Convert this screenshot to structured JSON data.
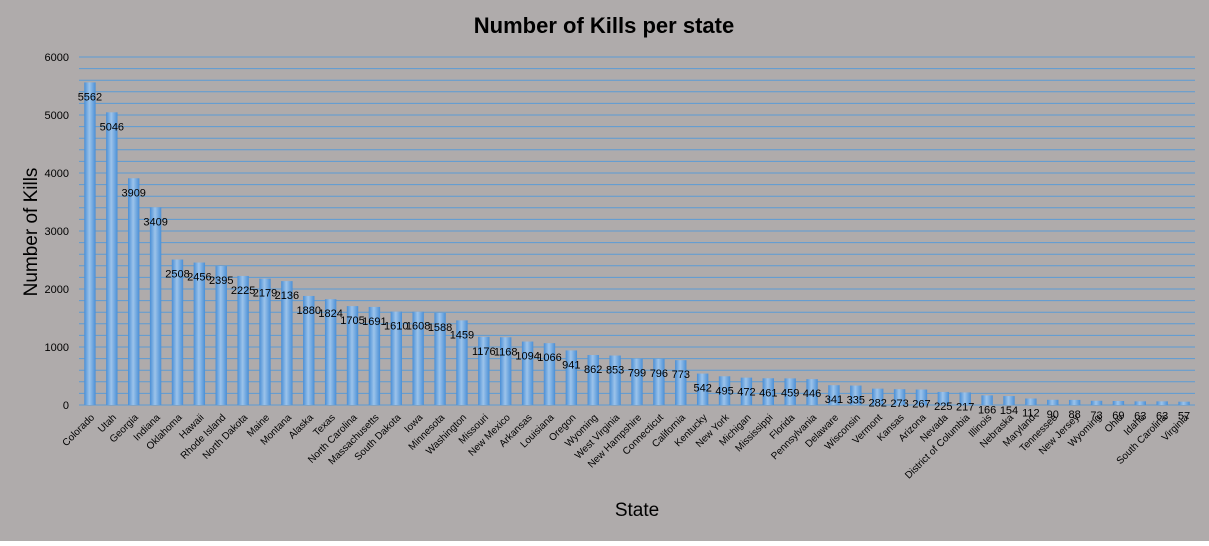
{
  "chart_data": {
    "type": "bar",
    "title": "Number of Kills per state",
    "xlabel": "State",
    "ylabel": "Number of Kills",
    "ylim": [
      0,
      6000
    ],
    "yticks": [
      0,
      1000,
      2000,
      3000,
      4000,
      5000,
      6000
    ],
    "categories": [
      "Colorado",
      "Utah",
      "Georgia",
      "Indiana",
      "Oklahoma",
      "Hawaii",
      "Rhode Island",
      "North Dakota",
      "Maine",
      "Montana",
      "Alaska",
      "Texas",
      "North Carolina",
      "Massachusetts",
      "South Dakota",
      "Iowa",
      "Minnesota",
      "Washington",
      "Missouri",
      "New Mexico",
      "Arkansas",
      "Louisiana",
      "Oregon",
      "Wyoming",
      "West Virginia",
      "New Hampshire",
      "Connecticut",
      "California",
      "Kentucky",
      "New York",
      "Michigan",
      "Mississippi",
      "Florida",
      "Pennsylvania",
      "Delaware",
      "Wisconsin",
      "Vermont",
      "Kansas",
      "Arizona",
      "Nevada",
      "District of Columbia",
      "Illinois",
      "Nebraska",
      "Maryland",
      "Tennessee",
      "New Jersey",
      "Wyoming",
      "Ohio",
      "Idaho",
      "South Carolina",
      "Virginia"
    ],
    "values": [
      5562,
      5046,
      3909,
      3409,
      2508,
      2456,
      2395,
      2225,
      2179,
      2136,
      1880,
      1824,
      1705,
      1691,
      1610,
      1608,
      1588,
      1459,
      1176,
      1168,
      1094,
      1066,
      941,
      862,
      853,
      799,
      796,
      773,
      542,
      495,
      472,
      461,
      459,
      446,
      341,
      335,
      282,
      273,
      267,
      225,
      217,
      166,
      154,
      112,
      90,
      88,
      73,
      69,
      63,
      63,
      57
    ],
    "grid": true,
    "legend": "none",
    "colors": {
      "background": "#afabab",
      "plot_area": "#afabab",
      "bar_light": "#9cc3ea",
      "bar_dark": "#4a8fd6",
      "gridline": "#5b9bd5",
      "text": "#000000"
    }
  }
}
